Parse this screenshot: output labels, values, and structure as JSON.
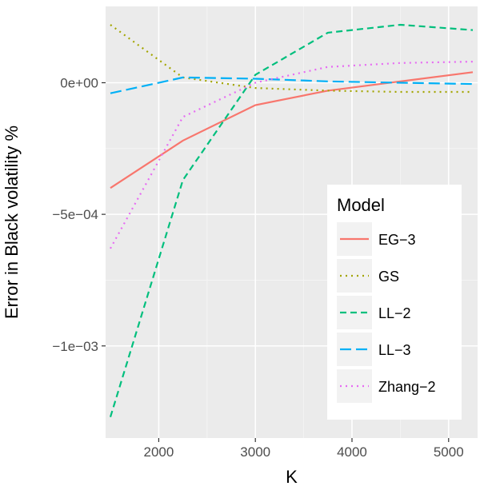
{
  "chart_data": {
    "type": "line",
    "xlabel": "K",
    "ylabel": "Error in Black volatility %",
    "xlim": [
      1450,
      5300
    ],
    "ylim": [
      -0.00135,
      0.00029
    ],
    "x_ticks": [
      2000,
      3000,
      4000,
      5000
    ],
    "x_tick_labels": [
      "2000",
      "3000",
      "4000",
      "5000"
    ],
    "y_ticks": [
      -0.001,
      -0.0005,
      0
    ],
    "y_tick_labels": [
      "−1e−03",
      "−5e−04",
      "0e+00"
    ],
    "grid": true,
    "legend": {
      "title": "Model",
      "placement": "bottom-right"
    },
    "series": [
      {
        "name": "EG−3",
        "color": "#F8766D",
        "dash": "solid",
        "x": [
          1500,
          2250,
          3000,
          3750,
          4500,
          5250
        ],
        "y": [
          -0.0004,
          -0.00022,
          -8.5e-05,
          -3e-05,
          5e-06,
          4e-05
        ]
      },
      {
        "name": "GS",
        "color": "#A3A500",
        "dash": "dotted",
        "x": [
          1500,
          2250,
          3000,
          3750,
          4500,
          5250
        ],
        "y": [
          0.00022,
          2e-05,
          -2e-05,
          -3e-05,
          -3.5e-05,
          -3.5e-05
        ]
      },
      {
        "name": "LL−2",
        "color": "#00BF7D",
        "dash": "dashed",
        "x": [
          1500,
          2250,
          3000,
          3750,
          4500,
          5250
        ],
        "y": [
          -0.00127,
          -0.00037,
          3e-05,
          0.00019,
          0.00022,
          0.0002
        ]
      },
      {
        "name": "LL−3",
        "color": "#00B0F6",
        "dash": "longdash",
        "x": [
          1500,
          2250,
          3000,
          3750,
          4500,
          5250
        ],
        "y": [
          -4e-05,
          2e-05,
          1.5e-05,
          5e-06,
          0.0,
          -5e-06
        ]
      },
      {
        "name": "Zhang−2",
        "color": "#E76BF3",
        "dash": "dotted",
        "x": [
          1500,
          2250,
          3000,
          3750,
          4500,
          5250
        ],
        "y": [
          -0.00063,
          -0.00013,
          0.0,
          6e-05,
          7.5e-05,
          8e-05
        ]
      }
    ]
  }
}
